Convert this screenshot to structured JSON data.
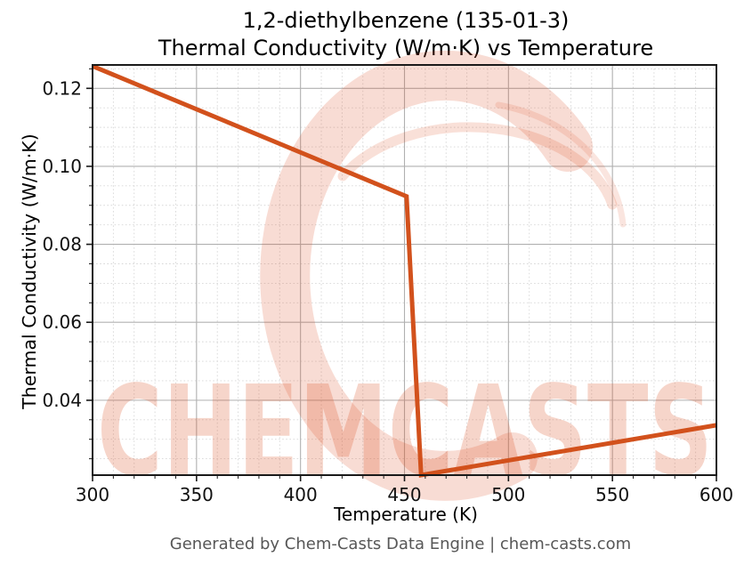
{
  "header": {
    "title_line1": "1,2-diethylbenzene (135-01-3)",
    "title_line2": "Thermal Conductivity (W/m·K) vs Temperature"
  },
  "footer": {
    "text": "Generated by Chem-Casts Data Engine | chem-casts.com"
  },
  "watermark": {
    "text": "CHEMCASTS",
    "logo_icon": "chemcasts-swirl-logo",
    "color": "#dd5226"
  },
  "colors": {
    "line": "#d2511c",
    "spine": "#1a1a1a",
    "major_grid": "#b0b0b0",
    "minor_grid": "#d7d7d7",
    "tick_label": "#111111",
    "footer_text": "#575757"
  },
  "chart_data": {
    "type": "line",
    "title": "1,2-diethylbenzene (135-01-3)\nThermal Conductivity (W/m·K) vs Temperature",
    "xlabel": "Temperature (K)",
    "ylabel": "Thermal Conductivity (W/m·K)",
    "xlim": [
      300,
      600
    ],
    "ylim": [
      0.0208,
      0.126
    ],
    "xticks": [
      300,
      350,
      400,
      450,
      500,
      550,
      600
    ],
    "yticks": [
      0.04,
      0.06,
      0.08,
      0.1,
      0.12
    ],
    "ytick_labels": [
      "0.04",
      "0.06",
      "0.08",
      "0.10",
      "0.12"
    ],
    "x_minor_step": 10,
    "y_minor_step": 0.005,
    "grid": {
      "major": true,
      "minor": true
    },
    "legend_position": "none",
    "series": [
      {
        "name": "thermal-conductivity",
        "color": "#d2511c",
        "line_width": 5,
        "points": [
          [
            300,
            0.1257
          ],
          [
            451,
            0.0923
          ],
          [
            458,
            0.0208
          ],
          [
            600,
            0.0336
          ]
        ]
      }
    ]
  }
}
